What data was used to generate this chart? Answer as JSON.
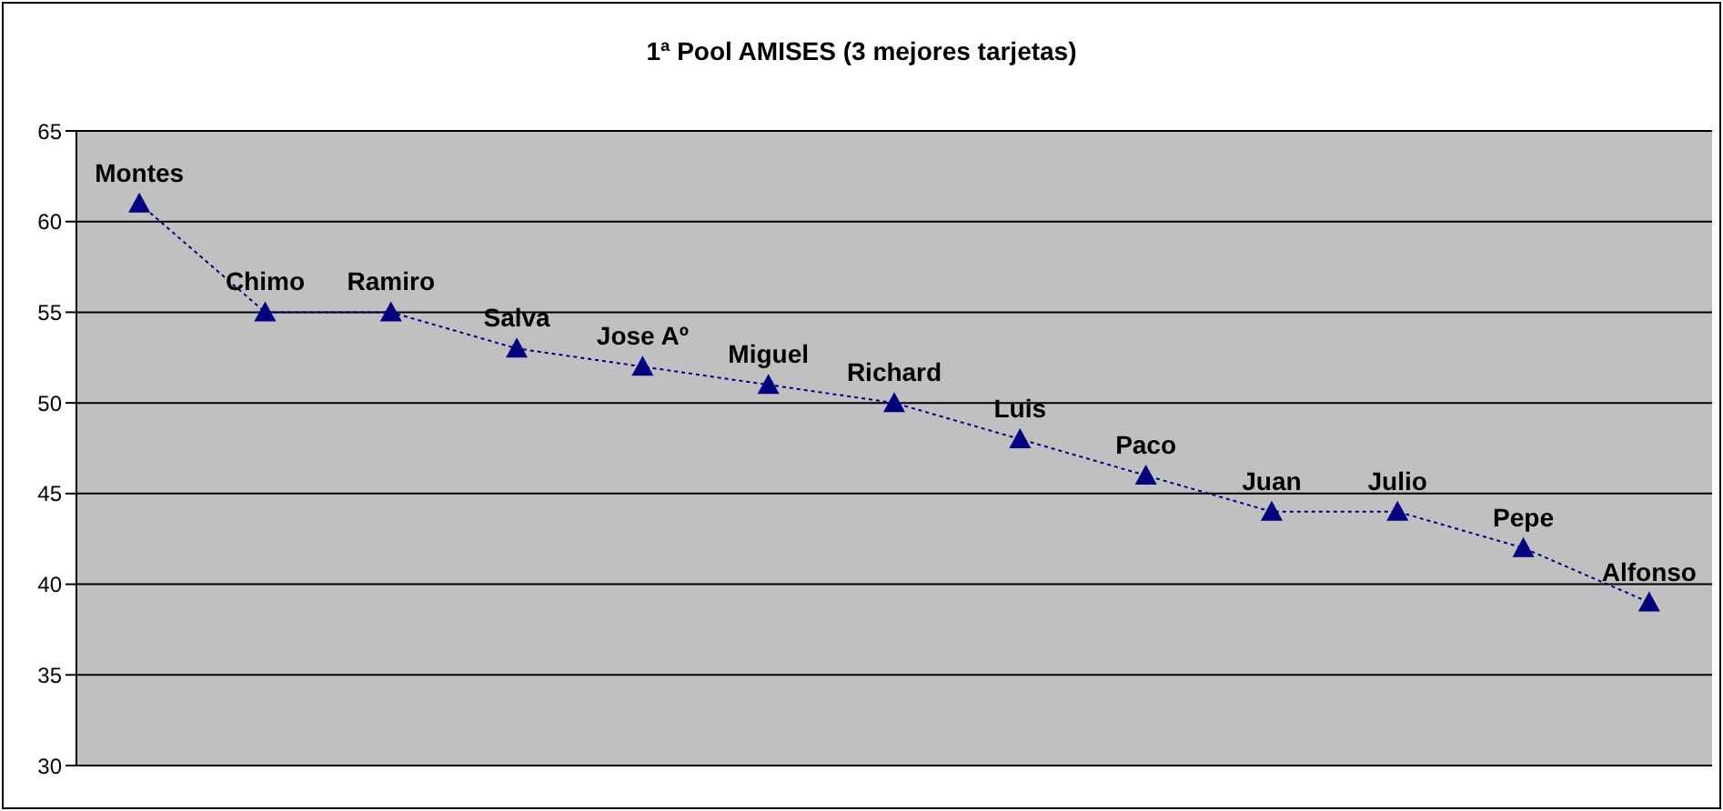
{
  "chart_data": {
    "type": "line",
    "title": "1ª Pool AMISES (3 mejores tarjetas)",
    "categories": [
      "Montes",
      "Chimo",
      "Ramiro",
      "Salva",
      "Jose Aº",
      "Miguel",
      "Richard",
      "Luis",
      "Paco",
      "Juan",
      "Julio",
      "Pepe",
      "Alfonso"
    ],
    "series": [
      {
        "color": "#000080",
        "values": [
          61,
          55,
          55,
          53,
          52,
          51,
          50,
          48,
          46,
          44,
          44,
          42,
          39
        ]
      }
    ],
    "ylim": [
      30,
      65
    ],
    "yticks": [
      30,
      35,
      40,
      45,
      50,
      55,
      60,
      65
    ],
    "grid": "y",
    "legend": false,
    "marker": "triangle",
    "line_style": "dotted",
    "tick_labels": "y"
  }
}
